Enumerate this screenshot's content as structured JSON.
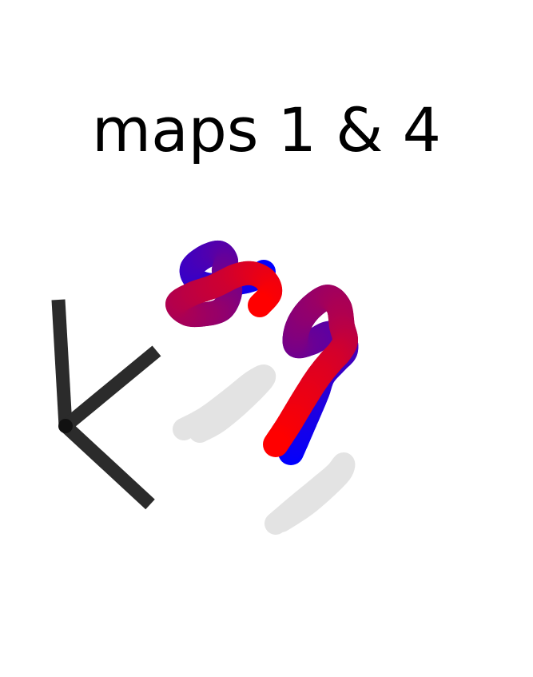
{
  "figure": {
    "title": "maps 1 & 4"
  },
  "colors": {
    "start": "#0000ff",
    "end": "#ff0000",
    "shadow": "#e3e3e3",
    "axes": "#2b2b2b"
  },
  "icons": {
    "axes": "axes-triad-icon"
  }
}
